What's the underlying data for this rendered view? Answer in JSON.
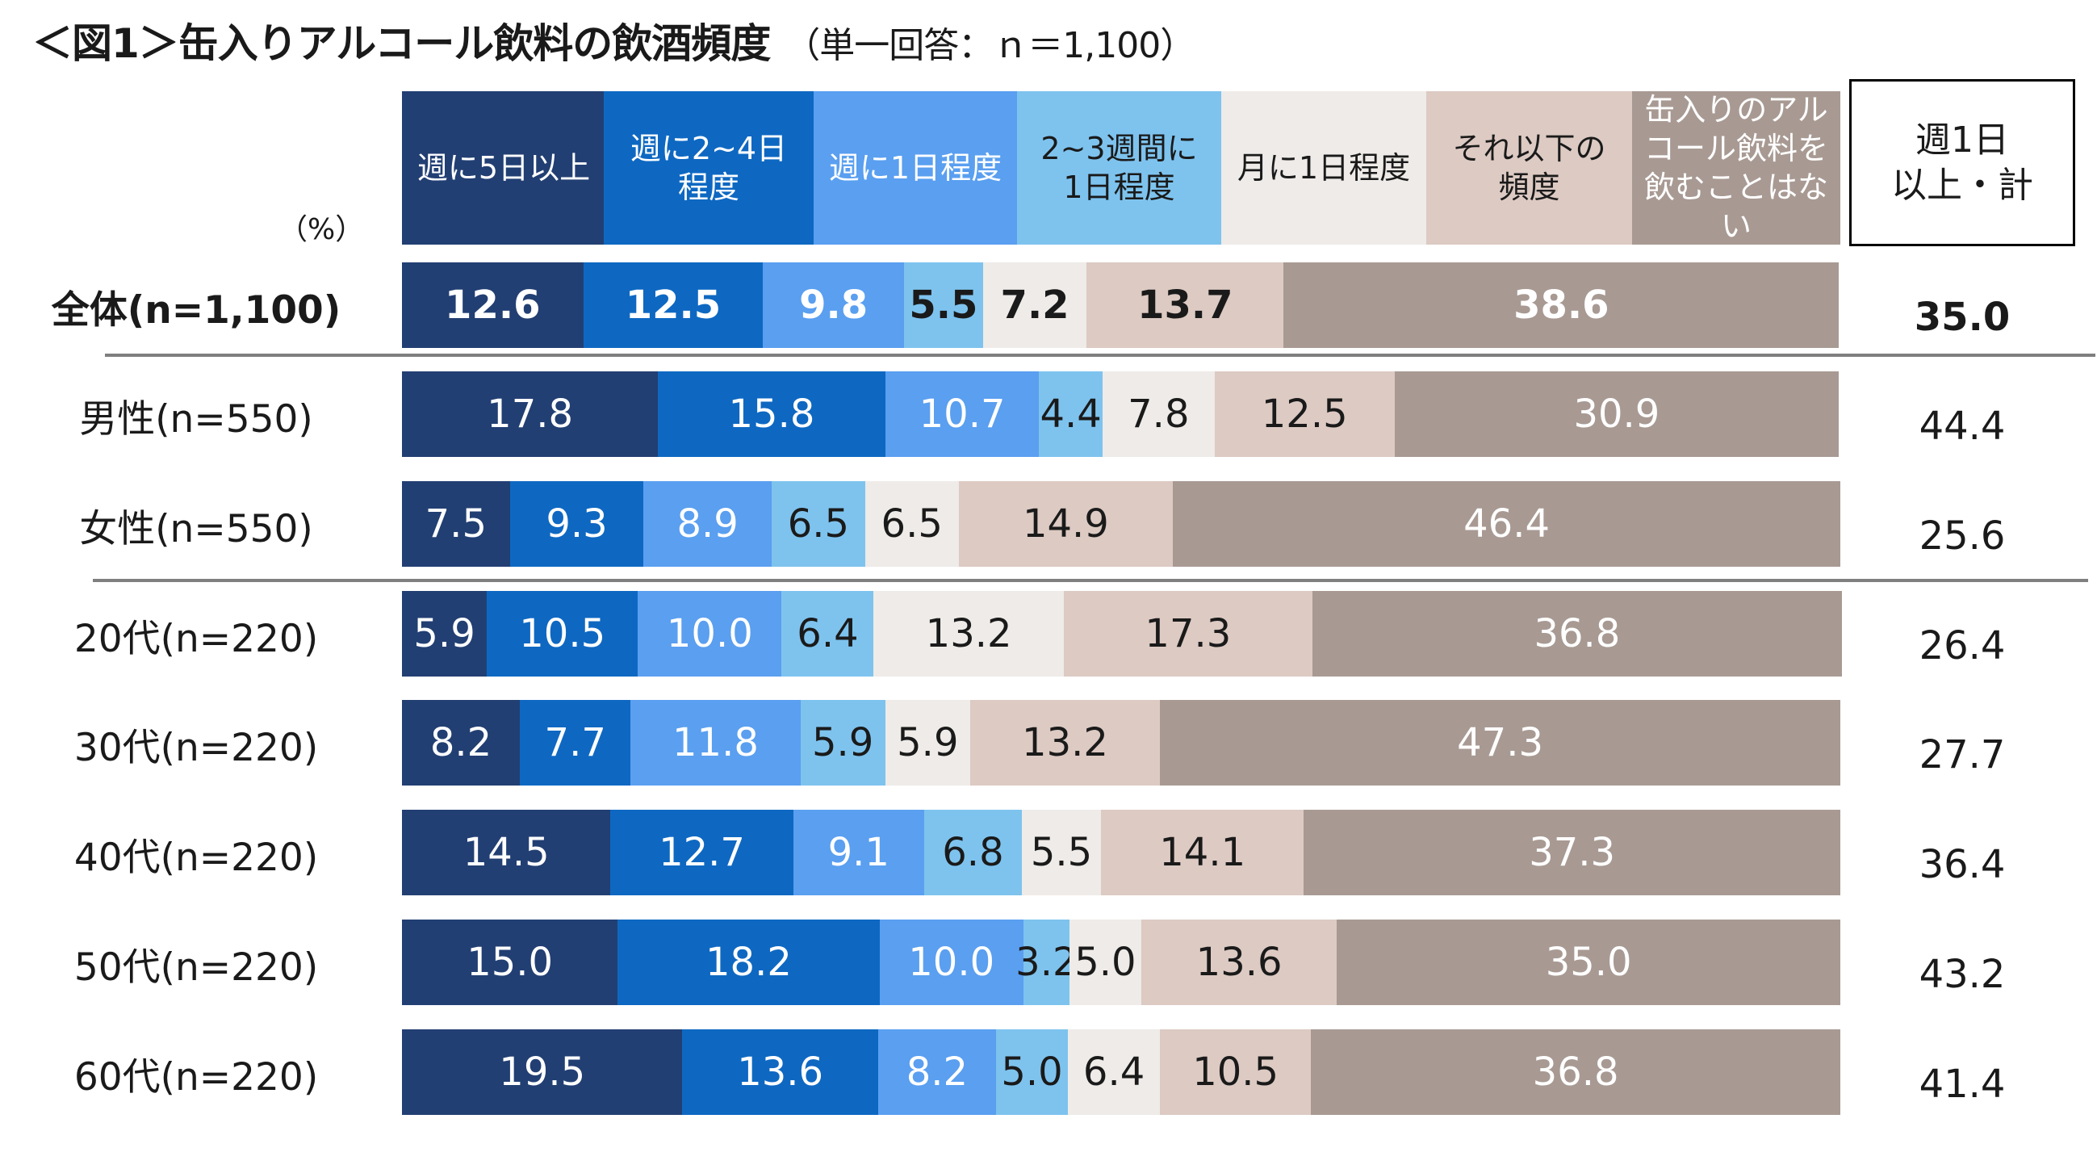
{
  "title": {
    "main": "＜図1＞缶入りアルコール飲料の飲酒頻度",
    "sub": "（単一回答：ｎ＝1,100）"
  },
  "unit_label": "（%）",
  "total_header": "週1日\n以上・計",
  "colors": {
    "seg1": "#223f73",
    "seg2": "#0e68c2",
    "seg3": "#5a9ff0",
    "seg4": "#7ec3ee",
    "seg5": "#eeebe8",
    "seg6": "#dccac3",
    "seg7": "#a89a93"
  },
  "chart_data": {
    "type": "bar",
    "orientation": "horizontal",
    "stacked": true,
    "percent_scale": [
      0,
      100
    ],
    "title": "＜図1＞缶入りアルコール飲料の飲酒頻度",
    "xlabel": "",
    "ylabel": "（%）",
    "legend_position": "top",
    "series": [
      {
        "name": "週に5日以上",
        "color": "#223f73",
        "text": "light",
        "values": [
          12.6,
          17.8,
          7.5,
          5.9,
          8.2,
          14.5,
          15.0,
          19.5
        ]
      },
      {
        "name": "週に2~4日\n程度",
        "color": "#0e68c2",
        "text": "light",
        "values": [
          12.5,
          15.8,
          9.3,
          10.5,
          7.7,
          12.7,
          18.2,
          13.6
        ]
      },
      {
        "name": "週に1日程度",
        "color": "#5a9ff0",
        "text": "light",
        "values": [
          9.8,
          10.7,
          8.9,
          10.0,
          11.8,
          9.1,
          10.0,
          8.2
        ]
      },
      {
        "name": "2~3週間に\n1日程度",
        "color": "#7ec3ee",
        "text": "dark",
        "values": [
          5.5,
          4.4,
          6.5,
          6.4,
          5.9,
          6.8,
          3.2,
          5.0
        ]
      },
      {
        "name": "月に1日程度",
        "color": "#eeebe8",
        "text": "dark",
        "values": [
          7.2,
          7.8,
          6.5,
          13.2,
          5.9,
          5.5,
          5.0,
          6.4
        ]
      },
      {
        "name": "それ以下の\n頻度",
        "color": "#dccac3",
        "text": "dark",
        "values": [
          13.7,
          12.5,
          14.9,
          17.3,
          13.2,
          14.1,
          13.6,
          10.5
        ]
      },
      {
        "name": "缶入りのアル\nコール飲料を\n飲むことはない",
        "color": "#a89a93",
        "text": "light",
        "values": [
          38.6,
          30.9,
          46.4,
          36.8,
          47.3,
          37.3,
          35.0,
          36.8
        ]
      }
    ],
    "rows": [
      {
        "label": "全体(n=1,100)",
        "bold": true,
        "total": "35.0"
      },
      {
        "label": "男性(n=550)",
        "bold": false,
        "total": "44.4"
      },
      {
        "label": "女性(n=550)",
        "bold": false,
        "total": "25.6"
      },
      {
        "label": "20代(n=220)",
        "bold": false,
        "total": "26.4"
      },
      {
        "label": "30代(n=220)",
        "bold": false,
        "total": "27.7"
      },
      {
        "label": "40代(n=220)",
        "bold": false,
        "total": "36.4"
      },
      {
        "label": "50代(n=220)",
        "bold": false,
        "total": "43.2"
      },
      {
        "label": "60代(n=220)",
        "bold": false,
        "total": "41.4"
      }
    ]
  }
}
